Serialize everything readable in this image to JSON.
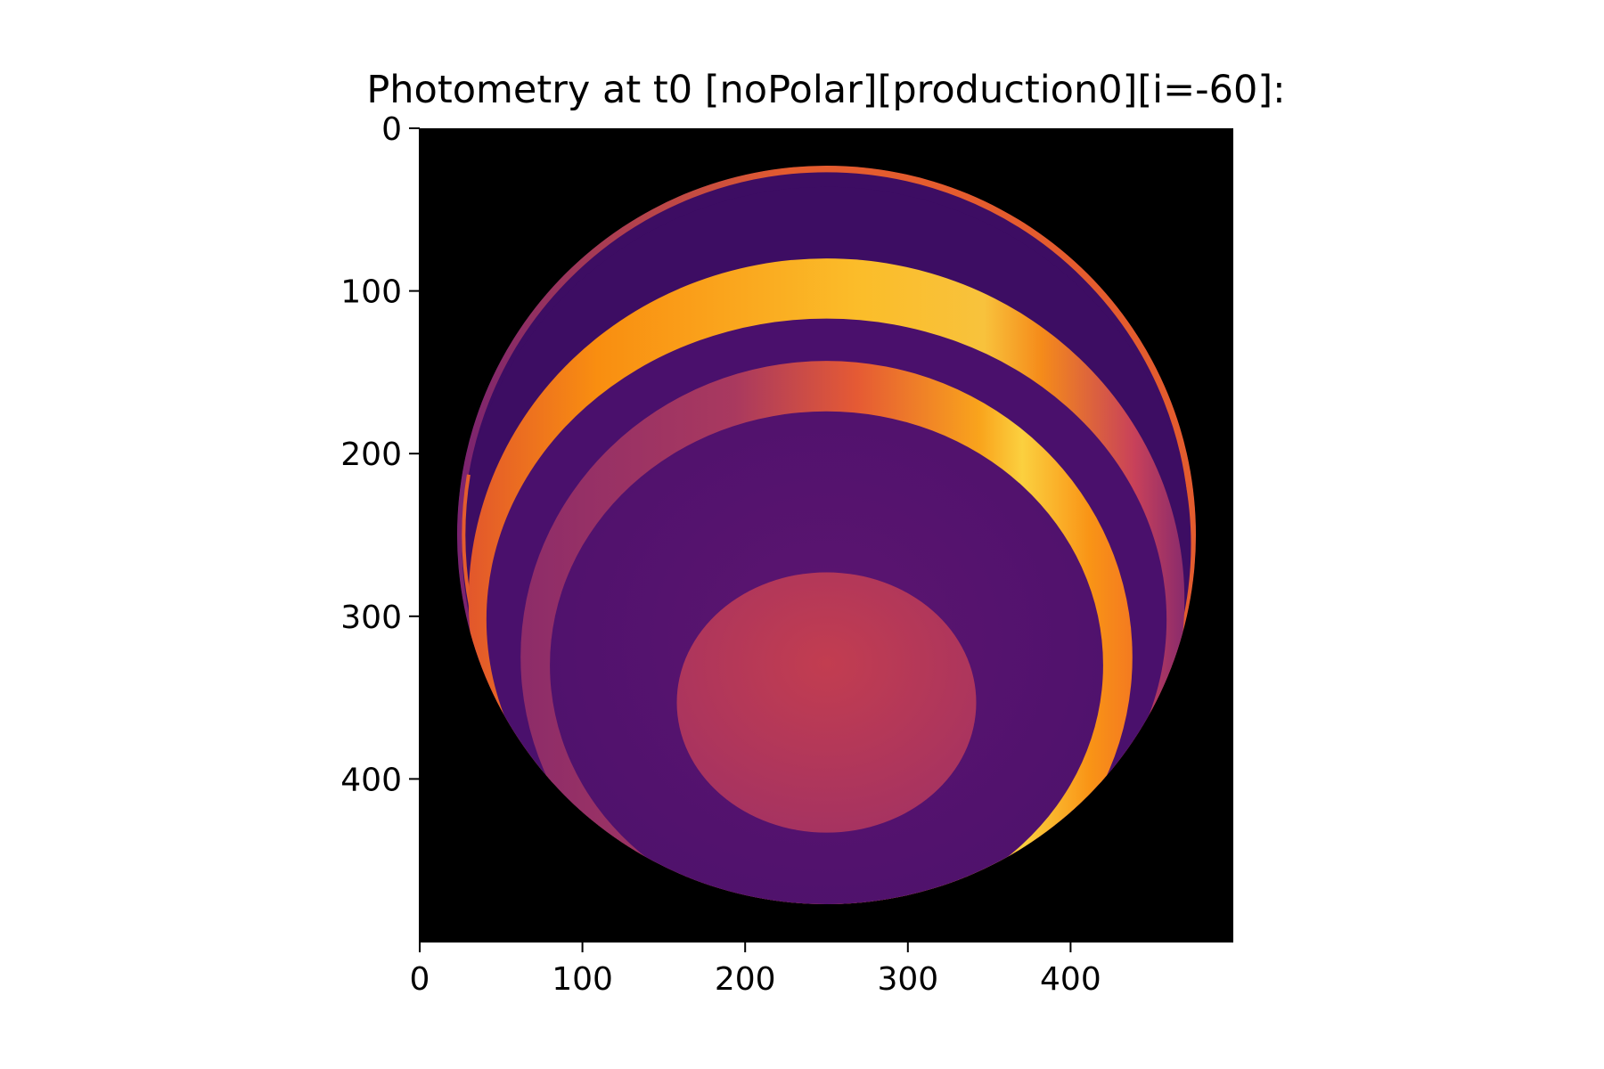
{
  "chart_data": {
    "type": "heatmap",
    "title": "Photometry at t0 [noPolar][production0][i=-60]:",
    "xlabel": "",
    "ylabel": "",
    "xlim": [
      0,
      500
    ],
    "ylim": [
      500,
      0
    ],
    "x_ticks": [
      0,
      100,
      200,
      300,
      400
    ],
    "y_ticks": [
      0,
      100,
      200,
      300,
      400
    ],
    "grid": false,
    "colormap": "inferno",
    "image_size": [
      500,
      500
    ],
    "background_color": "#000000",
    "features": [
      {
        "name": "disk",
        "shape": "circle",
        "center": [
          250,
          250
        ],
        "radius": 227,
        "color": "#3d0d63"
      },
      {
        "name": "outer-rim-arc",
        "shape": "ellipse-ring",
        "center": [
          250,
          250
        ],
        "radii": [
          226,
          226
        ],
        "color": "#e05a3a"
      },
      {
        "name": "upper-band",
        "shape": "ellipse-ring",
        "center": [
          250,
          290
        ],
        "outer_radii": [
          220,
          210
        ],
        "inner_radii": [
          209,
          185
        ],
        "color": "#f99a16",
        "highlight": "#fbd13e"
      },
      {
        "name": "lower-band",
        "shape": "ellipse-ring",
        "center": [
          250,
          330
        ],
        "outer_radii": [
          188,
          182
        ],
        "inner_radii": [
          170,
          156
        ],
        "color": "#a23b63",
        "highlight": "#fbd13e"
      },
      {
        "name": "inner-region",
        "shape": "ellipse",
        "center": [
          250,
          330
        ],
        "radii": [
          170,
          156
        ],
        "color": "#56126e"
      },
      {
        "name": "central-spot",
        "shape": "ellipse",
        "center": [
          250,
          353
        ],
        "radii": [
          92,
          80
        ],
        "color": "#b8385a"
      }
    ]
  }
}
